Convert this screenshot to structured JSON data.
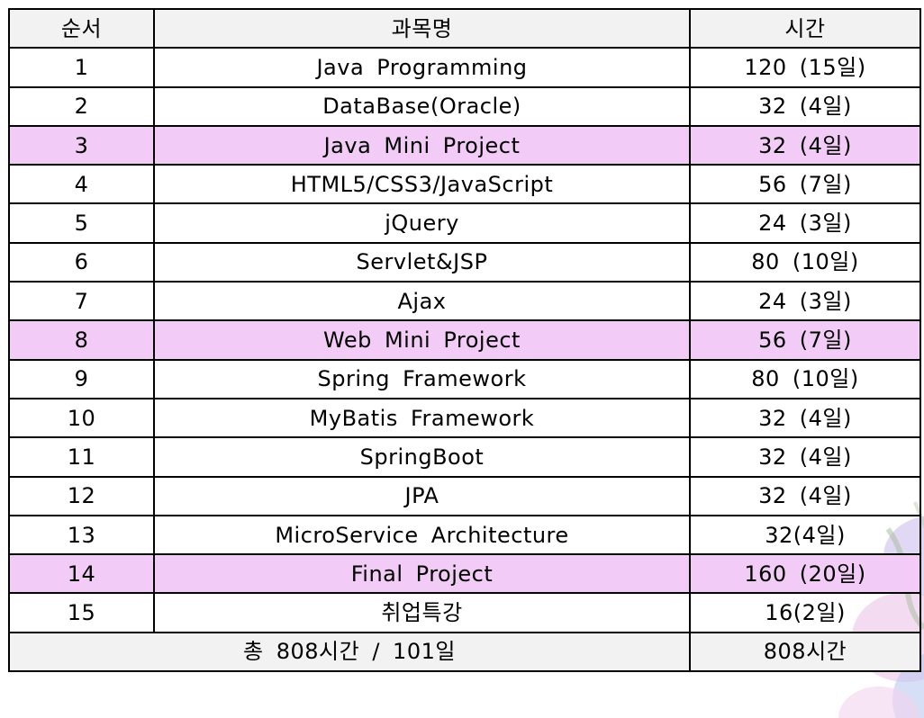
{
  "table": {
    "headers": [
      "순서",
      "과목명",
      "시간"
    ],
    "rows": [
      {
        "no": "1",
        "subject": "Java Programming",
        "hours": "120 (15일)",
        "highlight": false
      },
      {
        "no": "2",
        "subject": "DataBase(Oracle)",
        "hours": "32 (4일)",
        "highlight": false
      },
      {
        "no": "3",
        "subject": "Java Mini Project",
        "hours": "32 (4일)",
        "highlight": true
      },
      {
        "no": "4",
        "subject": "HTML5/CSS3/JavaScript",
        "hours": "56 (7일)",
        "highlight": false
      },
      {
        "no": "5",
        "subject": "jQuery",
        "hours": "24 (3일)",
        "highlight": false
      },
      {
        "no": "6",
        "subject": "Servlet&JSP",
        "hours": "80 (10일)",
        "highlight": false
      },
      {
        "no": "7",
        "subject": "Ajax",
        "hours": "24 (3일)",
        "highlight": false
      },
      {
        "no": "8",
        "subject": "Web Mini Project",
        "hours": "56 (7일)",
        "highlight": true
      },
      {
        "no": "9",
        "subject": "Spring Framework",
        "hours": "80 (10일)",
        "highlight": false
      },
      {
        "no": "10",
        "subject": "MyBatis Framework",
        "hours": "32 (4일)",
        "highlight": false
      },
      {
        "no": "11",
        "subject": "SpringBoot",
        "hours": "32 (4일)",
        "highlight": false
      },
      {
        "no": "12",
        "subject": "JPA",
        "hours": "32 (4일)",
        "highlight": false
      },
      {
        "no": "13",
        "subject": "MicroService Architecture",
        "hours": "32(4일)",
        "highlight": false
      },
      {
        "no": "14",
        "subject": "Final Project",
        "hours": "160 (20일)",
        "highlight": true
      },
      {
        "no": "15",
        "subject": "취업특강",
        "hours": "16(2일)",
        "highlight": false
      }
    ],
    "footer": {
      "total_label": "총 808시간 / 101일",
      "total_hours": "808시간"
    }
  },
  "colors": {
    "header_bg": "#f2f2f2",
    "highlight_row_bg": "#f2ccf6",
    "border": "#000000"
  }
}
